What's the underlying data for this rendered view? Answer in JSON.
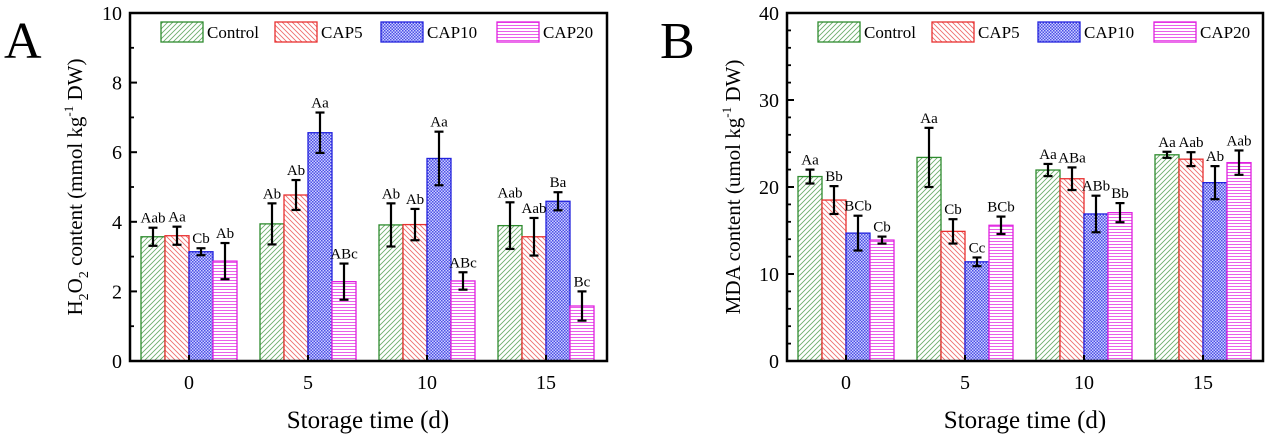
{
  "figure": {
    "series_styles": [
      {
        "name": "Control",
        "color": "#2e8b2e",
        "pattern": "diag-forward"
      },
      {
        "name": "CAP5",
        "color": "#e83030",
        "pattern": "diag-back"
      },
      {
        "name": "CAP10",
        "color": "#2222dd",
        "pattern": "crosshatch"
      },
      {
        "name": "CAP20",
        "color": "#e020e0",
        "pattern": "horizontal"
      }
    ],
    "errorbar_color": "#000000"
  },
  "chart_data": [
    {
      "panel_label": "A",
      "type": "bar",
      "title": "",
      "xlabel": "Storage time (d)",
      "ylabel_parts": {
        "pre": "H",
        "sub1": "2",
        "mid": "O",
        "sub2": "2",
        "post": " content (mmol kg",
        "sup": "-1",
        "end": " DW)"
      },
      "ylim": [
        0,
        10
      ],
      "yticks": [
        0,
        2,
        4,
        6,
        8,
        10
      ],
      "yminor_step": 1,
      "categories": [
        "0",
        "5",
        "10",
        "15"
      ],
      "legend": {
        "placement": "top",
        "entries": [
          "Control",
          "CAP5",
          "CAP10",
          "CAP20"
        ]
      },
      "grid": false,
      "series": [
        {
          "name": "Control",
          "values": [
            3.57,
            3.94,
            3.91,
            3.89
          ],
          "errors": [
            0.26,
            0.59,
            0.62,
            0.67
          ],
          "labels": [
            "Aab",
            "Ab",
            "Ab",
            "Aab"
          ]
        },
        {
          "name": "CAP5",
          "values": [
            3.6,
            4.77,
            3.92,
            3.57
          ],
          "errors": [
            0.26,
            0.43,
            0.45,
            0.54
          ],
          "labels": [
            "Aa",
            "Ab",
            "Ab",
            "Aab"
          ]
        },
        {
          "name": "CAP10",
          "values": [
            3.14,
            6.56,
            5.82,
            4.59
          ],
          "errors": [
            0.1,
            0.58,
            0.77,
            0.26
          ],
          "labels": [
            "Cb",
            "Aa",
            "Aa",
            "Ba"
          ]
        },
        {
          "name": "CAP20",
          "values": [
            2.87,
            2.28,
            2.3,
            1.58
          ],
          "errors": [
            0.52,
            0.52,
            0.25,
            0.42
          ],
          "labels": [
            "Ab",
            "ABc",
            "ABc",
            "Bc"
          ]
        }
      ]
    },
    {
      "panel_label": "B",
      "type": "bar",
      "title": "",
      "xlabel": "Storage time (d)",
      "ylabel_parts": {
        "pre": "MDA content (umol kg",
        "sub1": "",
        "mid": "",
        "sub2": "",
        "post": "",
        "sup": "-1",
        "end": " DW)"
      },
      "ylim": [
        0,
        40
      ],
      "yticks": [
        0,
        10,
        20,
        30,
        40
      ],
      "yminor_step": 2,
      "categories": [
        "0",
        "5",
        "10",
        "15"
      ],
      "legend": {
        "placement": "top",
        "entries": [
          "Control",
          "CAP5",
          "CAP10",
          "CAP20"
        ]
      },
      "grid": false,
      "series": [
        {
          "name": "Control",
          "values": [
            21.2,
            23.4,
            21.95,
            23.7
          ],
          "errors": [
            0.8,
            3.4,
            0.7,
            0.35
          ],
          "labels": [
            "Aa",
            "Aa",
            "Aa",
            "Aa"
          ]
        },
        {
          "name": "CAP5",
          "values": [
            18.5,
            14.9,
            20.95,
            23.2
          ],
          "errors": [
            1.6,
            1.4,
            1.3,
            0.8
          ],
          "labels": [
            "Bb",
            "Cb",
            "ABa",
            "Aab"
          ]
        },
        {
          "name": "CAP10",
          "values": [
            14.7,
            11.4,
            16.9,
            20.5
          ],
          "errors": [
            2.0,
            0.5,
            2.1,
            1.9
          ],
          "labels": [
            "BCb",
            "Cc",
            "ABb",
            "Ab"
          ]
        },
        {
          "name": "CAP20",
          "values": [
            13.9,
            15.6,
            17.05,
            22.8
          ],
          "errors": [
            0.4,
            1.0,
            1.1,
            1.4
          ],
          "labels": [
            "Cb",
            "BCb",
            "Bb",
            "Aab"
          ]
        }
      ]
    }
  ]
}
